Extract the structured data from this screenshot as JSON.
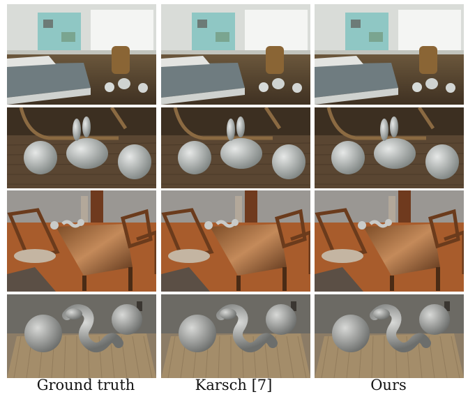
{
  "columns": [
    {
      "caption": "Ground truth",
      "id": "ground-truth"
    },
    {
      "caption": "Karsch [7]",
      "id": "karsch"
    },
    {
      "caption": "Ours",
      "id": "ours"
    }
  ],
  "rows": [
    {
      "scene": "bedroom-wide",
      "palette": {
        "wall": "#d9dcd8",
        "floor": "#5b4a33",
        "bed": "#6f7c80",
        "accent": "#8fc7c4"
      }
    },
    {
      "scene": "bedroom-closeup",
      "palette": {
        "wall": "#4a3a26",
        "floor": "#5a4632",
        "object": "#c9cdcb"
      }
    },
    {
      "scene": "dining-wide",
      "palette": {
        "wall": "#9a9793",
        "floor": "#a85c2c",
        "table": "#6a3f1f"
      }
    },
    {
      "scene": "dining-closeup",
      "palette": {
        "wall": "#6c6a64",
        "floor": "#a48d6a",
        "object": "#b9bab8"
      }
    }
  ]
}
